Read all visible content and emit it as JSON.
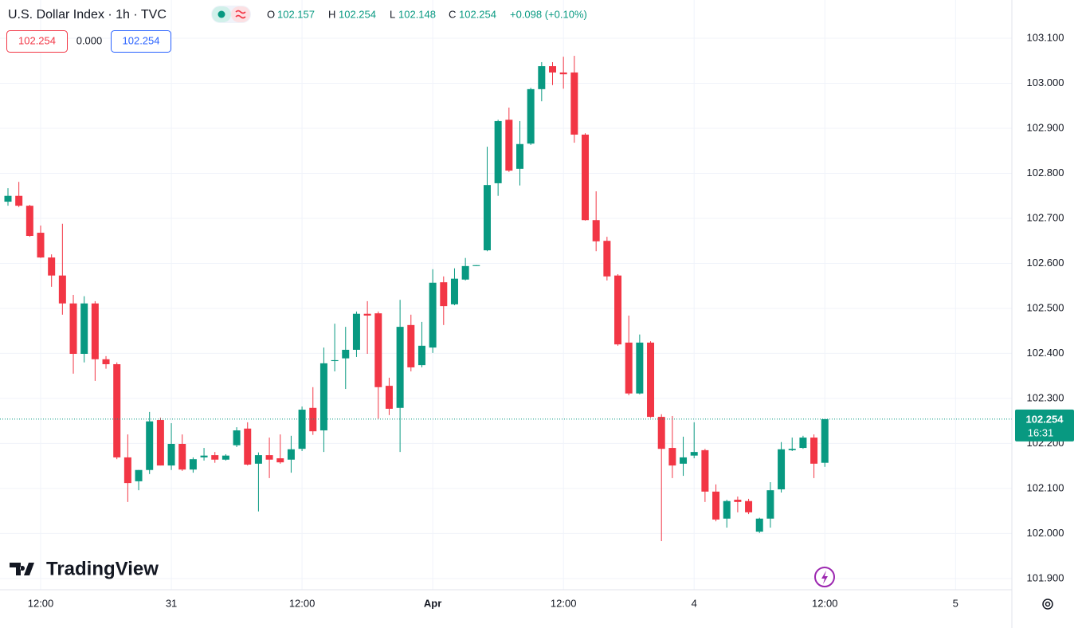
{
  "chart_data": {
    "type": "candlestick",
    "title": "U.S. Dollar Index · 1h · TVC",
    "legend": [
      {
        "label": "O",
        "value": 102.157
      },
      {
        "label": "H",
        "value": 102.254
      },
      {
        "label": "L",
        "value": 102.148
      },
      {
        "label": "C",
        "value": 102.254
      }
    ],
    "change": "+0.098 (+0.10%)",
    "badges": [
      "102.254",
      "0.000",
      "102.254"
    ],
    "last_price": 102.254,
    "countdown": "16:31",
    "brand": "TradingView",
    "up_color": "#089981",
    "down_color": "#f23645",
    "grid": true,
    "ylim": [
      101.875,
      103.185
    ],
    "yticks": [
      {
        "value": 101.9,
        "label": "101.900"
      },
      {
        "value": 102.0,
        "label": "102.000"
      },
      {
        "value": 102.1,
        "label": "102.100"
      },
      {
        "value": 102.2,
        "label": "102.200"
      },
      {
        "value": 102.3,
        "label": "102.300"
      },
      {
        "value": 102.4,
        "label": "102.400"
      },
      {
        "value": 102.5,
        "label": "102.500"
      },
      {
        "value": 102.6,
        "label": "102.600"
      },
      {
        "value": 102.7,
        "label": "102.700"
      },
      {
        "value": 102.8,
        "label": "102.800"
      },
      {
        "value": 102.9,
        "label": "102.900"
      },
      {
        "value": 103.0,
        "label": "103.000"
      },
      {
        "value": 103.1,
        "label": "103.100"
      }
    ],
    "categories": [
      null,
      null,
      null,
      "12:00",
      null,
      null,
      null,
      null,
      null,
      null,
      null,
      null,
      null,
      null,
      null,
      "31",
      null,
      null,
      null,
      null,
      null,
      null,
      null,
      null,
      null,
      null,
      null,
      "12:00",
      null,
      null,
      null,
      null,
      null,
      null,
      null,
      null,
      null,
      null,
      null,
      "Apr",
      null,
      null,
      null,
      null,
      null,
      null,
      null,
      null,
      null,
      null,
      null,
      "12:00",
      null,
      null,
      null,
      null,
      null,
      null,
      null,
      null,
      null,
      null,
      null,
      "4",
      null,
      null,
      null,
      null,
      null,
      null,
      null,
      null,
      null,
      null,
      null,
      "12:00",
      null,
      null,
      null,
      null,
      null,
      null,
      null,
      null,
      null,
      null,
      null,
      "5"
    ],
    "open": [
      102.737,
      102.75,
      102.728,
      102.668,
      102.613,
      102.573,
      102.511,
      102.399,
      102.511,
      102.387,
      102.376,
      102.169,
      102.116,
      102.141,
      102.252,
      102.151,
      102.199,
      102.142,
      102.169,
      102.174,
      102.164,
      102.196,
      102.233,
      102.155,
      102.174,
      102.167,
      102.164,
      102.188,
      102.279,
      102.229,
      102.383,
      102.389,
      102.408,
      102.488,
      102.489,
      102.328,
      102.279,
      102.463,
      102.374,
      102.413,
      102.558,
      102.509,
      102.564,
      102.594,
      102.629,
      102.778,
      102.919,
      102.81,
      102.866,
      102.987,
      103.038,
      103.024,
      103.024,
      102.886,
      102.696,
      102.65,
      102.573,
      102.424,
      102.311,
      102.424,
      102.259,
      102.19,
      102.155,
      102.173,
      102.185,
      102.093,
      102.033,
      102.075,
      102.072,
      102.004,
      102.033,
      102.098,
      102.185,
      102.19,
      102.213,
      102.157,
      null,
      null,
      null,
      null,
      null,
      null,
      null,
      null,
      null,
      null,
      null,
      null
    ],
    "high": [
      102.767,
      102.781,
      102.73,
      102.684,
      102.62,
      102.688,
      102.53,
      102.527,
      102.516,
      102.394,
      102.38,
      102.22,
      102.141,
      102.27,
      102.257,
      102.245,
      102.22,
      102.169,
      102.19,
      102.181,
      102.176,
      102.236,
      102.247,
      102.18,
      102.213,
      102.22,
      102.217,
      102.282,
      102.325,
      102.413,
      102.466,
      102.459,
      102.493,
      102.516,
      102.493,
      102.346,
      102.519,
      102.486,
      102.47,
      102.587,
      102.571,
      102.589,
      102.612,
      102.596,
      102.859,
      102.919,
      102.946,
      102.916,
      102.99,
      103.047,
      103.047,
      103.059,
      103.061,
      102.889,
      102.76,
      102.659,
      102.576,
      102.484,
      102.442,
      102.427,
      102.265,
      102.261,
      102.215,
      102.247,
      102.188,
      102.109,
      102.075,
      102.082,
      102.077,
      102.035,
      102.114,
      102.203,
      102.213,
      102.217,
      102.22,
      102.254,
      null,
      null,
      null,
      null,
      null,
      null,
      null,
      null,
      null,
      null,
      null,
      null
    ],
    "low": [
      102.728,
      102.725,
      102.659,
      102.612,
      102.548,
      102.486,
      102.355,
      102.38,
      102.339,
      102.366,
      102.165,
      102.07,
      102.096,
      102.132,
      102.151,
      102.141,
      102.139,
      102.135,
      102.162,
      102.157,
      102.162,
      102.192,
      102.151,
      102.049,
      102.123,
      102.155,
      102.135,
      102.183,
      102.219,
      102.181,
      102.36,
      102.321,
      102.392,
      102.399,
      102.255,
      102.263,
      102.181,
      102.36,
      102.369,
      102.401,
      102.463,
      102.507,
      102.562,
      102.594,
      102.627,
      102.75,
      102.803,
      102.773,
      102.863,
      102.96,
      102.996,
      102.988,
      102.868,
      102.695,
      102.627,
      102.562,
      102.417,
      102.307,
      102.309,
      102.257,
      101.983,
      102.123,
      102.128,
      102.167,
      102.07,
      102.027,
      102.013,
      102.047,
      102.043,
      102.001,
      102.013,
      102.091,
      102.183,
      102.188,
      102.123,
      102.148,
      null,
      null,
      null,
      null,
      null,
      null,
      null,
      null,
      null,
      null,
      null,
      null
    ],
    "close": [
      102.75,
      102.728,
      102.661,
      102.613,
      102.573,
      102.511,
      102.399,
      102.511,
      102.387,
      102.376,
      102.169,
      102.112,
      102.141,
      102.249,
      102.151,
      102.199,
      102.142,
      102.165,
      102.173,
      102.164,
      102.173,
      102.229,
      102.153,
      102.174,
      102.164,
      102.158,
      102.187,
      102.275,
      102.227,
      102.378,
      102.385,
      102.408,
      102.488,
      102.484,
      102.325,
      102.277,
      102.459,
      102.369,
      102.417,
      102.557,
      102.505,
      102.566,
      102.594,
      102.596,
      102.774,
      102.916,
      102.806,
      102.865,
      102.987,
      103.038,
      103.024,
      103.02,
      102.886,
      102.696,
      102.649,
      102.571,
      102.42,
      102.311,
      102.424,
      102.259,
      102.188,
      102.151,
      102.169,
      102.181,
      102.093,
      102.031,
      102.072,
      102.07,
      102.047,
      102.033,
      102.096,
      102.187,
      102.188,
      102.213,
      102.155,
      102.254,
      null,
      null,
      null,
      null,
      null,
      null,
      null,
      null,
      null,
      null,
      null,
      null
    ]
  }
}
